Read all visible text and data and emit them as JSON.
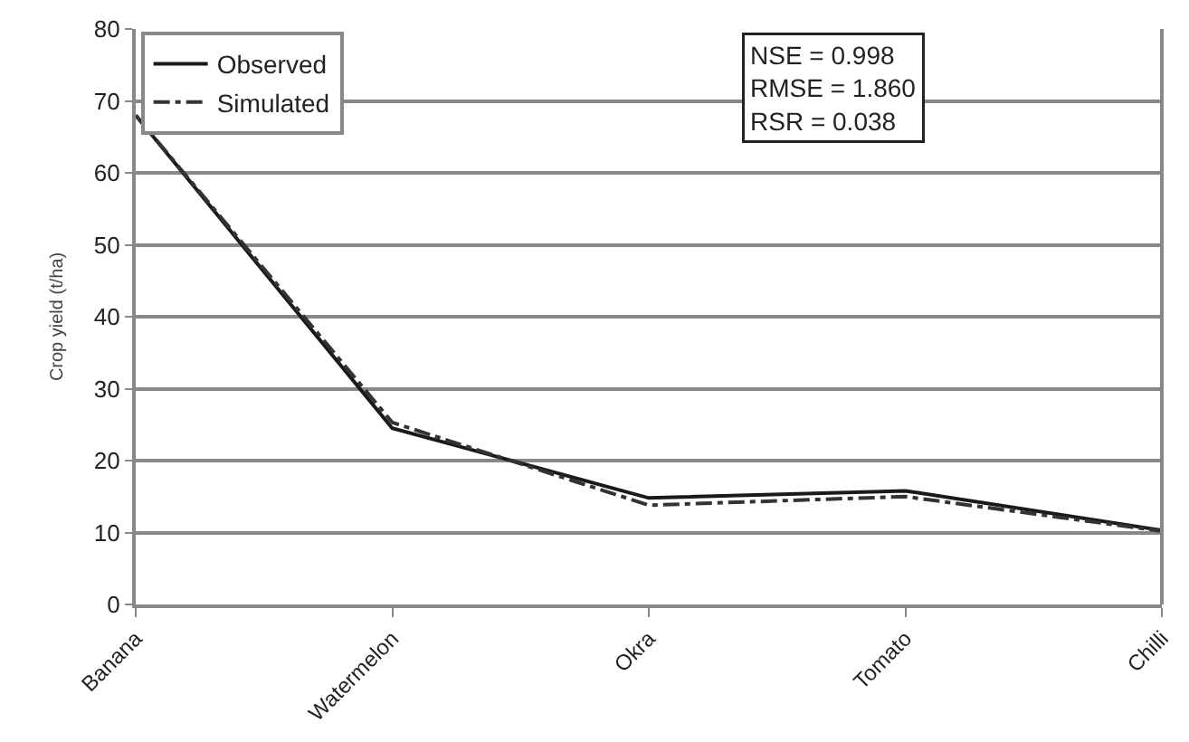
{
  "chart_data": {
    "type": "line",
    "ylabel": "Crop yield (t/ha)",
    "categories": [
      "Banana",
      "Watermelon",
      "Okra",
      "Tomato",
      "Chilli"
    ],
    "series": [
      {
        "name": "Observed",
        "color": "#1a1a1a",
        "line_style": "solid",
        "values": [
          68,
          24.5,
          14.8,
          15.8,
          10.3
        ]
      },
      {
        "name": "Simulated",
        "color": "#333333",
        "line_style": "dashed",
        "values": [
          68,
          25.3,
          13.8,
          15,
          10.2
        ]
      }
    ],
    "ylim": [
      0,
      80
    ],
    "yticks": [
      0,
      10,
      20,
      30,
      40,
      50,
      60,
      70,
      80
    ],
    "grid": "y",
    "legend": "top left",
    "marker": "none",
    "annotations": [
      "NSE = 0.998\nRMSE = 1.860\nRSR = 0.038"
    ]
  }
}
